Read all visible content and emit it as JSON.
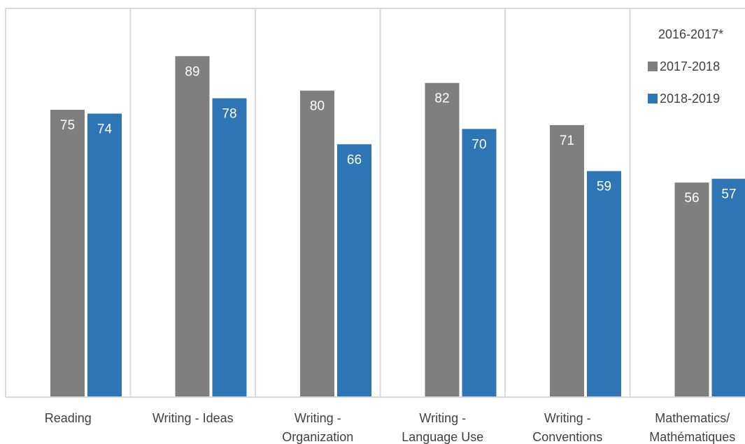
{
  "chart_data": {
    "type": "bar",
    "categories": [
      [
        "Reading"
      ],
      [
        "Writing - Ideas"
      ],
      [
        "Writing -",
        "Organization"
      ],
      [
        "Writing -",
        "Language Use"
      ],
      [
        "Writing -",
        "Conventions"
      ],
      [
        "Mathematics/",
        "Mathématiques"
      ]
    ],
    "series": [
      {
        "name": "2016-2017*",
        "color": "#ffffff",
        "values": [
          null,
          null,
          null,
          null,
          null,
          null
        ]
      },
      {
        "name": "2017-2018",
        "color": "#7f7f7f",
        "values": [
          75,
          89,
          80,
          82,
          71,
          56
        ]
      },
      {
        "name": "2018-2019",
        "color": "#2e75b6",
        "values": [
          74,
          78,
          66,
          70,
          59,
          57
        ]
      }
    ],
    "ylim": [
      0,
      100
    ],
    "grid": "vertical-category-dividers",
    "legend_position": "top-right"
  }
}
